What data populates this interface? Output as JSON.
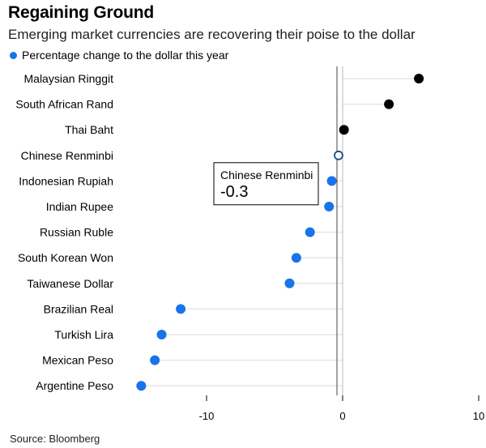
{
  "title": "Regaining Ground",
  "subtitle": "Emerging market currencies are recovering their poise to the dollar",
  "legend_label": "Percentage change to the dollar this year",
  "source": "Source: Bloomberg",
  "colors": {
    "positive": "#000000",
    "negative": "#1a73e8",
    "highlight_stroke": "#1a4a8a",
    "stem": "#e6e6e6",
    "zero_line": "#000000"
  },
  "chart_data": {
    "type": "lollipop",
    "title": "Regaining Ground",
    "subtitle": "Emerging market currencies are recovering their poise to the dollar",
    "series_name": "Percentage change to the dollar this year",
    "categories": [
      "Malaysian Ringgit",
      "South African Rand",
      "Thai Baht",
      "Chinese Renminbi",
      "Indonesian Rupiah",
      "Indian Rupee",
      "Russian Ruble",
      "South Korean Won",
      "Taiwanese Dollar",
      "Brazilian Real",
      "Turkish Lira",
      "Mexican Peso",
      "Argentine Peso"
    ],
    "values": [
      5.6,
      3.4,
      0.1,
      -0.3,
      -0.8,
      -1.0,
      -2.4,
      -3.4,
      -3.9,
      -11.9,
      -13.3,
      -13.8,
      -14.8
    ],
    "xlim": [
      -17,
      10
    ],
    "xticks": [
      -10,
      0,
      10
    ],
    "xtick_labels": [
      "-10",
      "0",
      "10"
    ],
    "highlight": {
      "category": "Chinese Renminbi",
      "label": "Chinese Renminbi",
      "value_label": "-0.3"
    }
  }
}
